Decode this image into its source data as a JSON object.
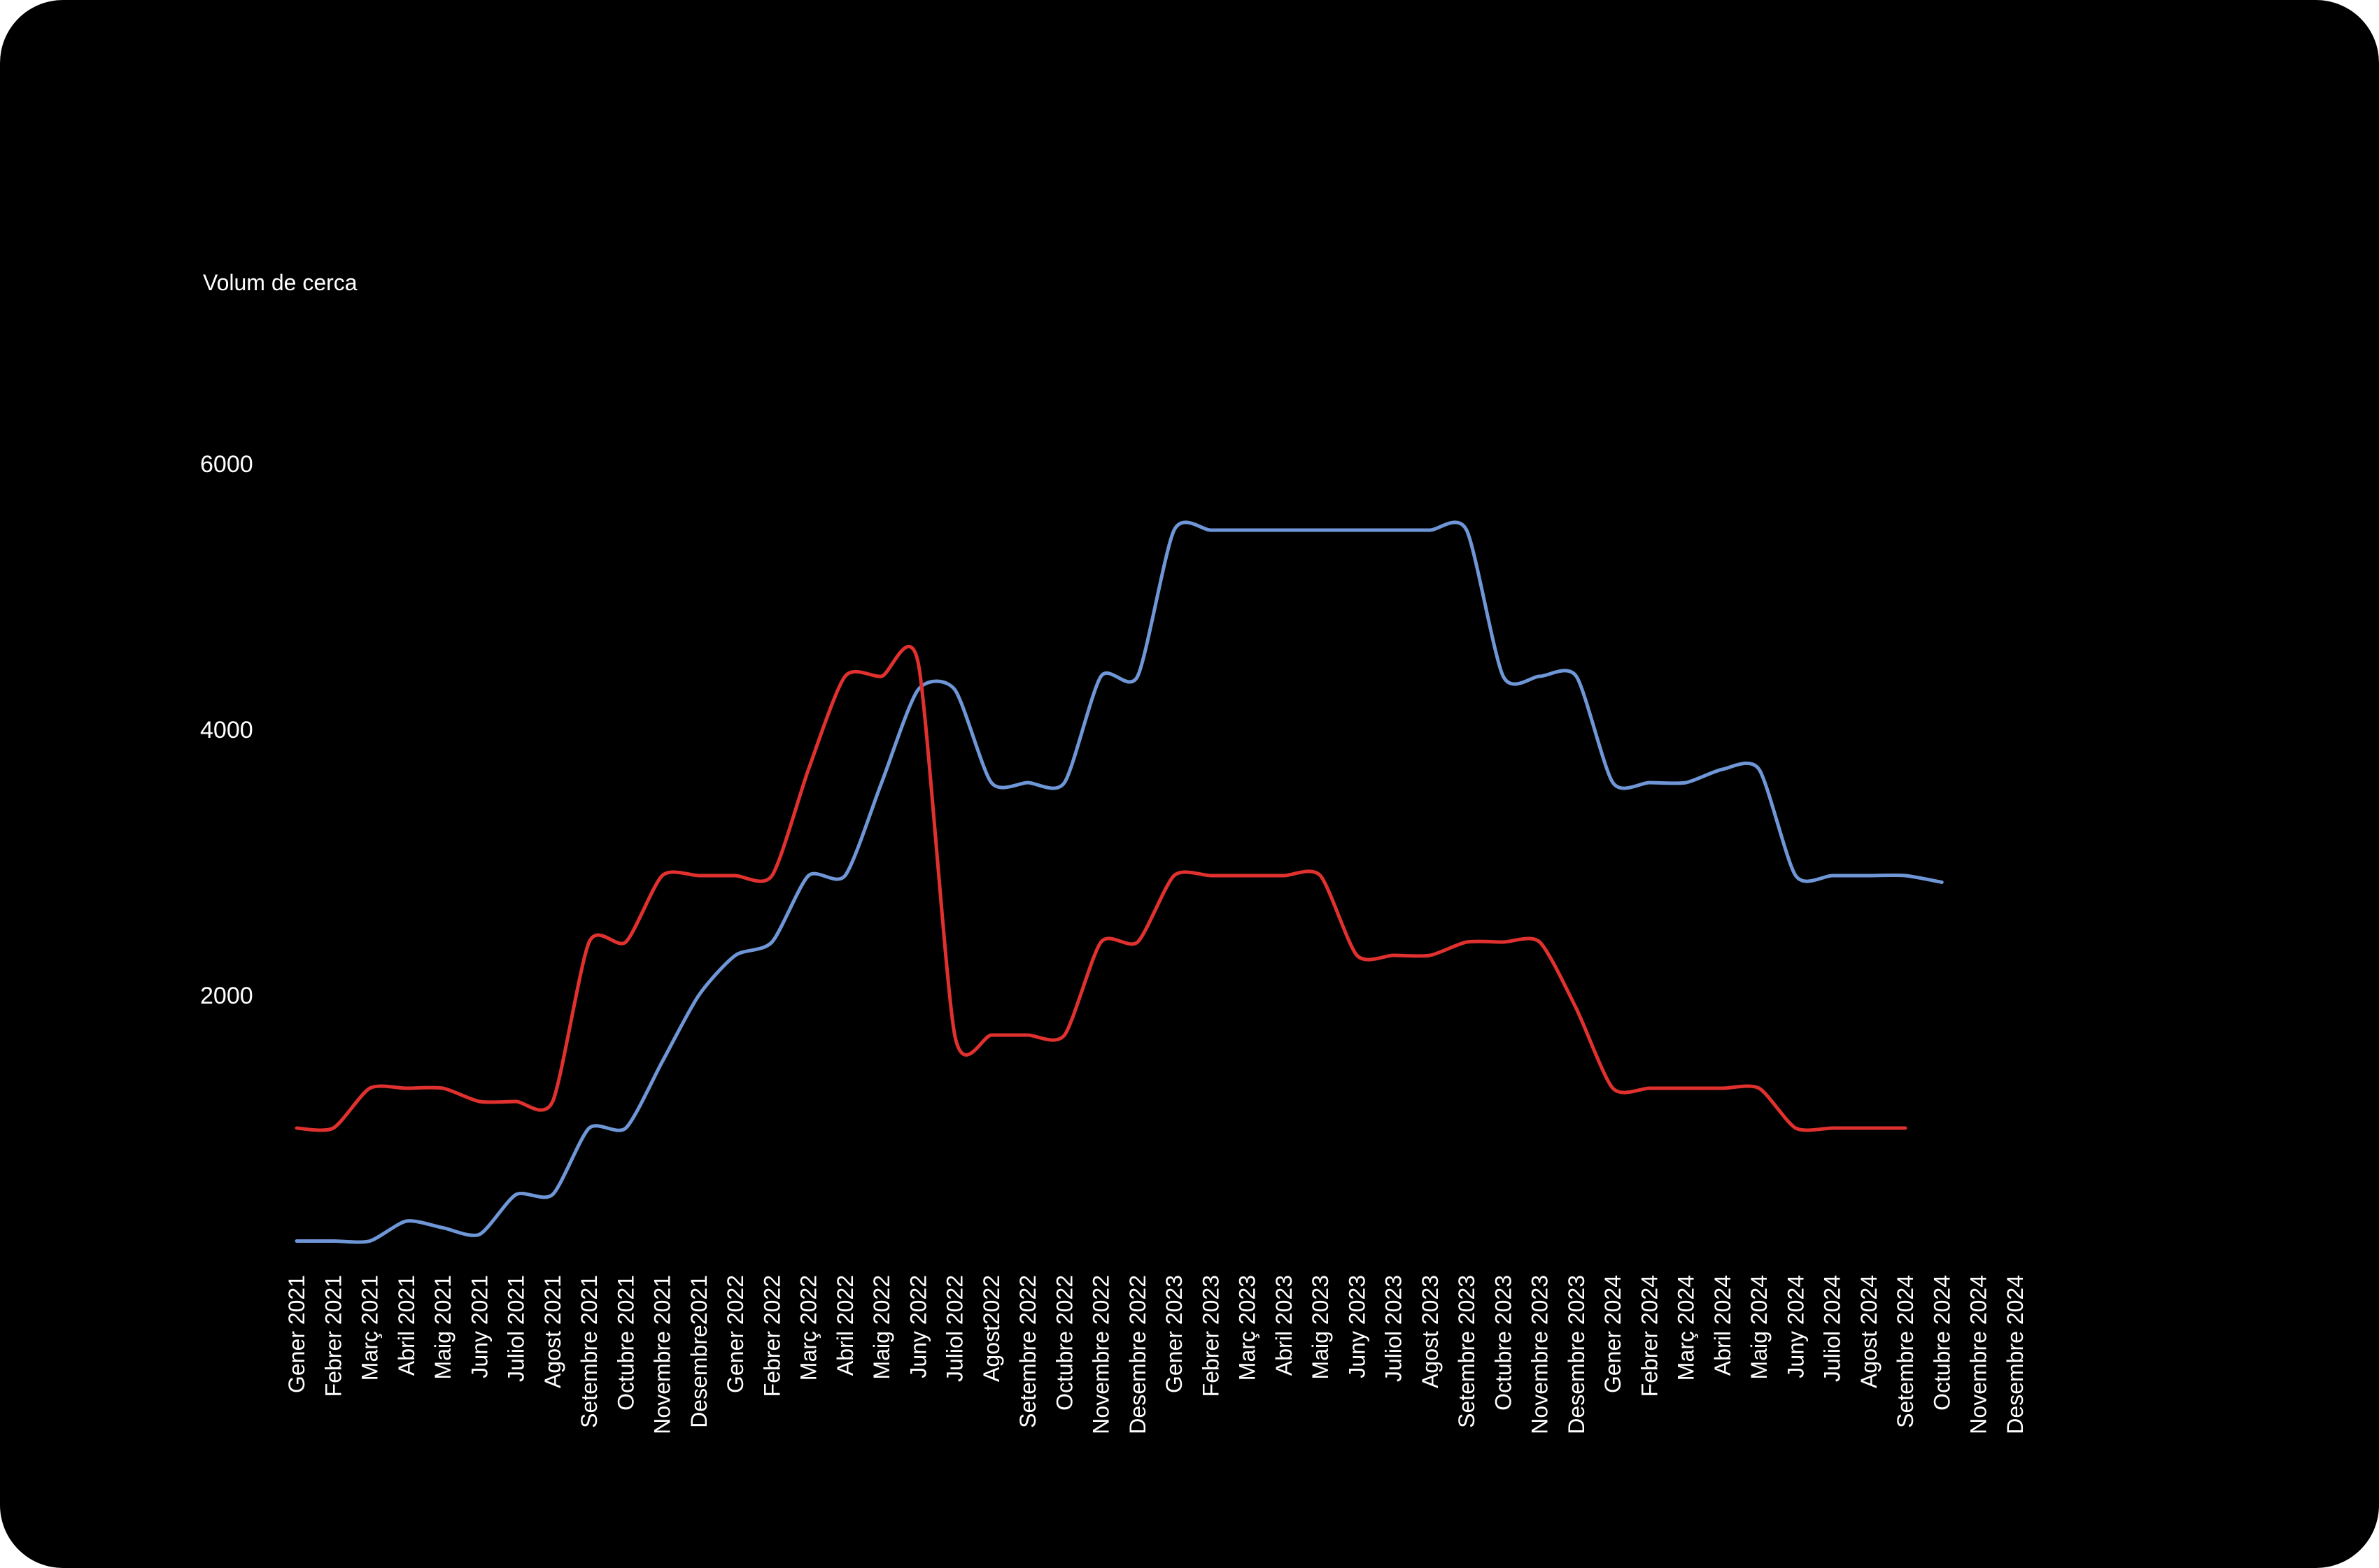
{
  "chart_data": {
    "type": "line",
    "title": "",
    "ylabel": "Volum de cerca",
    "xlabel": "",
    "ylim": [
      0,
      7000
    ],
    "yticks": [
      "2000",
      "4000",
      "6000"
    ],
    "grid": false,
    "categories": [
      "Gener 2021",
      "Febrer 2021",
      "Març 2021",
      "Abril 2021",
      "Maig 2021",
      "Juny 2021",
      "Juliol 2021",
      "Agost 2021",
      "Setembre 2021",
      "Octubre 2021",
      "Novembre 2021",
      "Desembre2021",
      "Gener 2022",
      "Febrer 2022",
      "Març 2022",
      "Abril 2022",
      "Maig 2022",
      "Juny 2022",
      "Juliol 2022",
      "Agost2022",
      "Setembre 2022",
      "Octubre 2022",
      "Novembre 2022",
      "Desembre 2022",
      "Gener 2023",
      "Febrer 2023",
      "Març 2023",
      "Abril 2023",
      "Maig 2023",
      "Juny 2023",
      "Juliol 2023",
      "Agost 2023",
      "Setembre 2023",
      "Octubre 2023",
      "Novembre 2023",
      "Desembre 2023",
      "Gener 2024",
      "Febrer 2024",
      "Març 2024",
      "Abril 2024",
      "Maig  2024",
      "Juny 2024",
      "Juliol 2024",
      "Agost 2024",
      "Setembre 2024",
      "Octubre 2024",
      "Novembre 2024",
      "Desembre 2024"
    ],
    "series": [
      {
        "color": "#6f96d6",
        "values": [
          150,
          150,
          150,
          300,
          250,
          200,
          500,
          500,
          1000,
          1000,
          1500,
          2000,
          2300,
          2400,
          2900,
          2900,
          3600,
          4300,
          4300,
          3600,
          3600,
          3600,
          4400,
          4400,
          5500,
          5500,
          5500,
          5500,
          5500,
          5500,
          5500,
          5500,
          5500,
          4400,
          4400,
          4400,
          3600,
          3600,
          3600,
          3700,
          3700,
          2900,
          2900,
          2900,
          2900,
          2850,
          null,
          null
        ]
      },
      {
        "color": "#e0312f",
        "values": [
          1000,
          1000,
          1300,
          1300,
          1300,
          1200,
          1200,
          1200,
          2400,
          2400,
          2900,
          2900,
          2900,
          2900,
          3700,
          4400,
          4400,
          4500,
          1700,
          1700,
          1700,
          1700,
          2400,
          2400,
          2900,
          2900,
          2900,
          2900,
          2900,
          2300,
          2300,
          2300,
          2400,
          2400,
          2400,
          1900,
          1300,
          1300,
          1300,
          1300,
          1300,
          1000,
          1000,
          1000,
          1000,
          null,
          null,
          null
        ]
      }
    ]
  }
}
